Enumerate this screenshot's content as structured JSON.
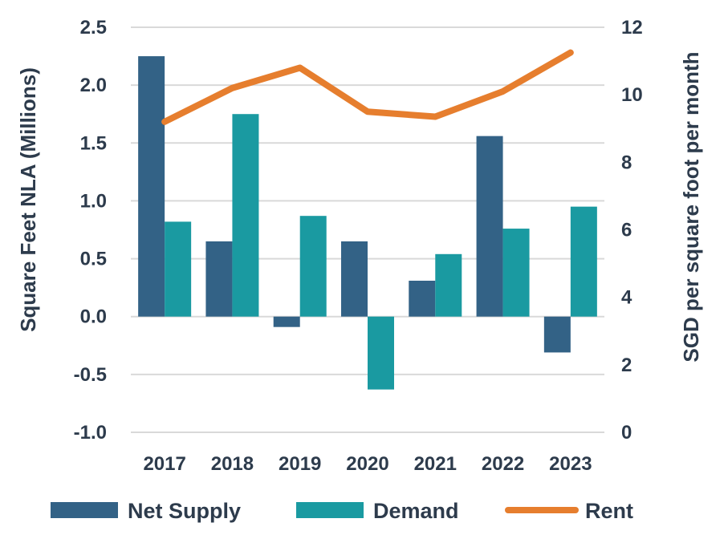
{
  "chart_data": {
    "type": "bar",
    "categories": [
      "2017",
      "2018",
      "2019",
      "2020",
      "2021",
      "2022",
      "2023"
    ],
    "series": [
      {
        "name": "Net Supply",
        "kind": "bar",
        "axis": "left",
        "color": "#336286",
        "values": [
          2.25,
          0.65,
          -0.09,
          0.65,
          0.31,
          1.56,
          -0.31
        ]
      },
      {
        "name": "Demand",
        "kind": "bar",
        "axis": "left",
        "color": "#1a9aa1",
        "values": [
          0.82,
          1.75,
          0.87,
          -0.63,
          0.54,
          0.76,
          0.95
        ]
      },
      {
        "name": "Rent",
        "kind": "line",
        "axis": "right",
        "color": "#e67e2e",
        "values": [
          9.2,
          10.2,
          10.8,
          9.5,
          9.35,
          10.1,
          11.25
        ]
      }
    ],
    "ylabel": "Square Feet NLA (Millions)",
    "ylabel_right": "SGD per square foot per month",
    "ylim": [
      -1.0,
      2.5
    ],
    "ylim_right": [
      0,
      12
    ],
    "yticks": [
      "2.5",
      "2.0",
      "1.5",
      "1.0",
      "0.5",
      "0.0",
      "-0.5",
      "-1.0"
    ],
    "yticks_right": [
      "12",
      "10",
      "8",
      "6",
      "4",
      "2",
      "0"
    ],
    "grid": true,
    "legend": "bottom"
  }
}
